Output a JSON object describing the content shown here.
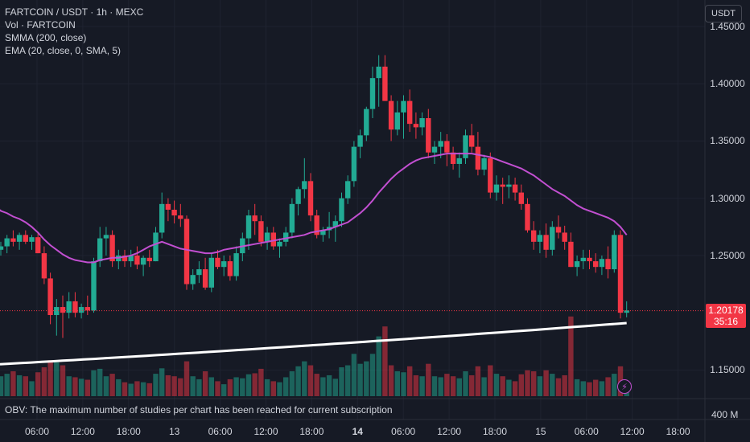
{
  "legend": {
    "symbol": "FARTCOIN / USDT · 1h · MEXC",
    "volume": "Vol · FARTCOIN",
    "smma": "SMMA (200, close)",
    "ema": "EMA (20, close, 0, SMA, 5)"
  },
  "currency_label": "USDT",
  "current_price": {
    "price": "1.20178",
    "countdown": "35:16"
  },
  "obv_message": "OBV: The maximum number of studies per chart has been reached for current subscription",
  "obv_scale_label": "400 M",
  "colors": {
    "up": "#22ab94",
    "down": "#f23645",
    "ema": "#c24fd1",
    "smma": "#ffffff",
    "grid": "#1f2330",
    "background": "#161a25"
  },
  "chart_data": {
    "type": "candlestick",
    "y_axis": {
      "ylim": [
        1.125,
        1.4732
      ],
      "ticks": [
        {
          "value": 1.45,
          "label": "1.45000"
        },
        {
          "value": 1.4,
          "label": "1.40000"
        },
        {
          "value": 1.35,
          "label": "1.35000"
        },
        {
          "value": 1.3,
          "label": "1.30000"
        },
        {
          "value": 1.25,
          "label": "1.25000"
        },
        {
          "value": 1.15,
          "label": "1.15000"
        }
      ]
    },
    "x_axis": {
      "ticks": [
        {
          "label": "06:00",
          "bold": false
        },
        {
          "label": "12:00",
          "bold": false
        },
        {
          "label": "18:00",
          "bold": false
        },
        {
          "label": "13",
          "bold": false
        },
        {
          "label": "06:00",
          "bold": false
        },
        {
          "label": "12:00",
          "bold": false
        },
        {
          "label": "18:00",
          "bold": false
        },
        {
          "label": "14",
          "bold": true
        },
        {
          "label": "06:00",
          "bold": false
        },
        {
          "label": "12:00",
          "bold": false
        },
        {
          "label": "18:00",
          "bold": false
        },
        {
          "label": "15",
          "bold": false
        },
        {
          "label": "06:00",
          "bold": false
        },
        {
          "label": "12:00",
          "bold": false
        },
        {
          "label": "18:00",
          "bold": false
        }
      ]
    },
    "candles": [
      [
        1.255,
        1.262,
        1.25,
        1.258,
        40
      ],
      [
        1.258,
        1.268,
        1.252,
        1.265,
        45
      ],
      [
        1.265,
        1.272,
        1.258,
        1.262,
        50
      ],
      [
        1.262,
        1.27,
        1.255,
        1.268,
        42
      ],
      [
        1.268,
        1.272,
        1.26,
        1.262,
        40
      ],
      [
        1.262,
        1.268,
        1.255,
        1.266,
        30
      ],
      [
        1.266,
        1.27,
        1.252,
        1.252,
        48
      ],
      [
        1.252,
        1.258,
        1.225,
        1.23,
        58
      ],
      [
        1.23,
        1.235,
        1.19,
        1.198,
        72
      ],
      [
        1.198,
        1.212,
        1.18,
        1.205,
        68
      ],
      [
        1.205,
        1.215,
        1.178,
        1.2,
        62
      ],
      [
        1.2,
        1.218,
        1.195,
        1.21,
        40
      ],
      [
        1.21,
        1.218,
        1.196,
        1.2,
        38
      ],
      [
        1.2,
        1.208,
        1.195,
        1.205,
        35
      ],
      [
        1.205,
        1.215,
        1.198,
        1.202,
        33
      ],
      [
        1.202,
        1.248,
        1.2,
        1.245,
        52
      ],
      [
        1.245,
        1.275,
        1.24,
        1.265,
        55
      ],
      [
        1.265,
        1.275,
        1.25,
        1.268,
        40
      ],
      [
        1.268,
        1.272,
        1.24,
        1.245,
        45
      ],
      [
        1.245,
        1.255,
        1.238,
        1.25,
        34
      ],
      [
        1.25,
        1.255,
        1.24,
        1.245,
        28
      ],
      [
        1.245,
        1.255,
        1.24,
        1.25,
        25
      ],
      [
        1.25,
        1.258,
        1.238,
        1.242,
        30
      ],
      [
        1.242,
        1.25,
        1.232,
        1.248,
        28
      ],
      [
        1.248,
        1.255,
        1.24,
        1.245,
        26
      ],
      [
        1.245,
        1.275,
        1.245,
        1.27,
        45
      ],
      [
        1.27,
        1.305,
        1.265,
        1.295,
        56
      ],
      [
        1.295,
        1.3,
        1.28,
        1.29,
        42
      ],
      [
        1.29,
        1.298,
        1.278,
        1.285,
        40
      ],
      [
        1.285,
        1.295,
        1.275,
        1.282,
        36
      ],
      [
        1.282,
        1.285,
        1.22,
        1.225,
        70
      ],
      [
        1.225,
        1.238,
        1.22,
        1.233,
        40
      ],
      [
        1.233,
        1.245,
        1.226,
        1.238,
        34
      ],
      [
        1.238,
        1.248,
        1.22,
        1.222,
        50
      ],
      [
        1.222,
        1.252,
        1.218,
        1.248,
        38
      ],
      [
        1.248,
        1.255,
        1.238,
        1.24,
        30
      ],
      [
        1.24,
        1.25,
        1.232,
        1.245,
        24
      ],
      [
        1.245,
        1.25,
        1.228,
        1.232,
        34
      ],
      [
        1.232,
        1.258,
        1.228,
        1.252,
        38
      ],
      [
        1.252,
        1.27,
        1.245,
        1.265,
        36
      ],
      [
        1.265,
        1.29,
        1.255,
        1.285,
        44
      ],
      [
        1.285,
        1.295,
        1.268,
        1.28,
        46
      ],
      [
        1.28,
        1.285,
        1.258,
        1.262,
        55
      ],
      [
        1.262,
        1.275,
        1.255,
        1.27,
        34
      ],
      [
        1.27,
        1.275,
        1.255,
        1.258,
        30
      ],
      [
        1.258,
        1.265,
        1.248,
        1.262,
        28
      ],
      [
        1.262,
        1.275,
        1.258,
        1.27,
        38
      ],
      [
        1.27,
        1.3,
        1.265,
        1.295,
        50
      ],
      [
        1.295,
        1.31,
        1.285,
        1.308,
        60
      ],
      [
        1.308,
        1.335,
        1.3,
        1.315,
        70
      ],
      [
        1.315,
        1.322,
        1.28,
        1.285,
        62
      ],
      [
        1.285,
        1.29,
        1.265,
        1.268,
        45
      ],
      [
        1.268,
        1.275,
        1.262,
        1.272,
        38
      ],
      [
        1.272,
        1.288,
        1.265,
        1.275,
        42
      ],
      [
        1.275,
        1.285,
        1.262,
        1.28,
        35
      ],
      [
        1.28,
        1.305,
        1.275,
        1.3,
        58
      ],
      [
        1.3,
        1.32,
        1.295,
        1.315,
        62
      ],
      [
        1.315,
        1.35,
        1.31,
        1.345,
        85
      ],
      [
        1.345,
        1.36,
        1.335,
        1.355,
        65
      ],
      [
        1.355,
        1.38,
        1.35,
        1.378,
        70
      ],
      [
        1.378,
        1.415,
        1.37,
        1.405,
        85
      ],
      [
        1.405,
        1.425,
        1.38,
        1.415,
        120
      ],
      [
        1.415,
        1.425,
        1.385,
        1.385,
        140
      ],
      [
        1.385,
        1.39,
        1.35,
        1.36,
        62
      ],
      [
        1.36,
        1.385,
        1.355,
        1.375,
        50
      ],
      [
        1.375,
        1.39,
        1.352,
        1.385,
        48
      ],
      [
        1.385,
        1.395,
        1.358,
        1.365,
        60
      ],
      [
        1.365,
        1.375,
        1.352,
        1.362,
        42
      ],
      [
        1.362,
        1.375,
        1.355,
        1.37,
        40
      ],
      [
        1.37,
        1.378,
        1.335,
        1.34,
        65
      ],
      [
        1.34,
        1.35,
        1.33,
        1.345,
        40
      ],
      [
        1.345,
        1.358,
        1.335,
        1.35,
        38
      ],
      [
        1.35,
        1.356,
        1.328,
        1.34,
        45
      ],
      [
        1.34,
        1.345,
        1.325,
        1.33,
        40
      ],
      [
        1.33,
        1.34,
        1.318,
        1.335,
        36
      ],
      [
        1.335,
        1.36,
        1.33,
        1.355,
        50
      ],
      [
        1.355,
        1.365,
        1.34,
        1.345,
        42
      ],
      [
        1.345,
        1.358,
        1.32,
        1.325,
        60
      ],
      [
        1.325,
        1.338,
        1.32,
        1.335,
        38
      ],
      [
        1.335,
        1.34,
        1.3,
        1.305,
        62
      ],
      [
        1.305,
        1.32,
        1.298,
        1.312,
        45
      ],
      [
        1.312,
        1.318,
        1.295,
        1.31,
        40
      ],
      [
        1.31,
        1.32,
        1.3,
        1.312,
        33
      ],
      [
        1.312,
        1.318,
        1.298,
        1.305,
        30
      ],
      [
        1.305,
        1.312,
        1.29,
        1.295,
        44
      ],
      [
        1.295,
        1.3,
        1.27,
        1.272,
        52
      ],
      [
        1.272,
        1.28,
        1.255,
        1.262,
        50
      ],
      [
        1.262,
        1.272,
        1.252,
        1.268,
        40
      ],
      [
        1.268,
        1.278,
        1.248,
        1.255,
        52
      ],
      [
        1.255,
        1.28,
        1.25,
        1.275,
        45
      ],
      [
        1.275,
        1.285,
        1.265,
        1.27,
        36
      ],
      [
        1.27,
        1.276,
        1.255,
        1.262,
        42
      ],
      [
        1.262,
        1.27,
        1.24,
        1.24,
        160
      ],
      [
        1.24,
        1.25,
        1.232,
        1.245,
        34
      ],
      [
        1.245,
        1.255,
        1.238,
        1.248,
        30
      ],
      [
        1.248,
        1.255,
        1.238,
        1.245,
        28
      ],
      [
        1.245,
        1.252,
        1.235,
        1.24,
        33
      ],
      [
        1.24,
        1.25,
        1.233,
        1.247,
        30
      ],
      [
        1.247,
        1.258,
        1.23,
        1.238,
        38
      ],
      [
        1.238,
        1.272,
        1.235,
        1.268,
        45
      ],
      [
        1.268,
        1.272,
        1.195,
        1.2,
        60
      ],
      [
        1.2,
        1.21,
        1.196,
        1.202,
        20
      ]
    ],
    "ema": [
      1.289,
      1.287,
      1.284,
      1.282,
      1.279,
      1.275,
      1.27,
      1.264,
      1.259,
      1.255,
      1.251,
      1.248,
      1.246,
      1.245,
      1.244,
      1.244,
      1.246,
      1.247,
      1.248,
      1.248,
      1.249,
      1.25,
      1.252,
      1.255,
      1.258,
      1.26,
      1.262,
      1.26,
      1.258,
      1.256,
      1.255,
      1.254,
      1.253,
      1.252,
      1.252,
      1.253,
      1.255,
      1.256,
      1.257,
      1.258,
      1.259,
      1.26,
      1.261,
      1.262,
      1.263,
      1.264,
      1.265,
      1.266,
      1.267,
      1.268,
      1.27,
      1.271,
      1.272,
      1.273,
      1.275,
      1.277,
      1.279,
      1.283,
      1.287,
      1.292,
      1.298,
      1.305,
      1.311,
      1.317,
      1.322,
      1.326,
      1.33,
      1.333,
      1.335,
      1.336,
      1.337,
      1.338,
      1.339,
      1.339,
      1.339,
      1.339,
      1.339,
      1.338,
      1.337,
      1.336,
      1.334,
      1.332,
      1.33,
      1.328,
      1.326,
      1.323,
      1.32,
      1.316,
      1.312,
      1.308,
      1.305,
      1.302,
      1.298,
      1.294,
      1.291,
      1.289,
      1.287,
      1.285,
      1.283,
      1.28,
      1.275,
      1.268
    ],
    "smma_start": 1.155,
    "smma_end": 1.191,
    "price_line": 1.20178
  }
}
